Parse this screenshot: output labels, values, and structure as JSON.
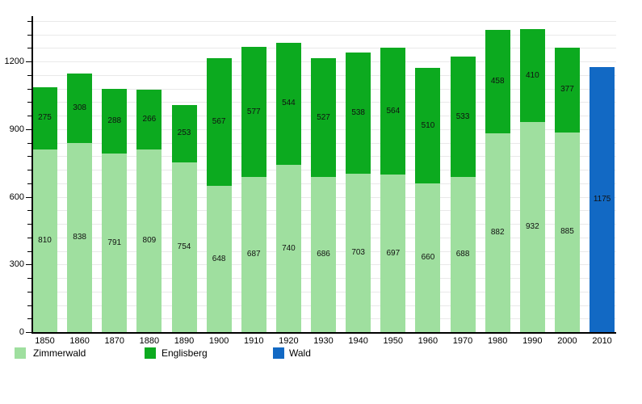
{
  "chart_data": {
    "type": "bar",
    "stacked": true,
    "title": "",
    "xlabel": "",
    "ylabel": "",
    "categories": [
      "1850",
      "1860",
      "1870",
      "1880",
      "1890",
      "1900",
      "1910",
      "1920",
      "1930",
      "1940",
      "1950",
      "1960",
      "1970",
      "1980",
      "1990",
      "2000",
      "2010"
    ],
    "series": [
      {
        "name": "Zimmerwald",
        "color": "#9fdf9f",
        "values": [
          810,
          838,
          791,
          809,
          754,
          648,
          687,
          740,
          686,
          703,
          697,
          660,
          688,
          882,
          932,
          885,
          null
        ]
      },
      {
        "name": "Englisberg",
        "color": "#0caa1f",
        "values": [
          275,
          308,
          288,
          266,
          253,
          567,
          577,
          544,
          527,
          538,
          564,
          510,
          533,
          458,
          410,
          377,
          null
        ]
      },
      {
        "name": "Wald",
        "color": "#1269c4",
        "values": [
          null,
          null,
          null,
          null,
          null,
          null,
          null,
          null,
          null,
          null,
          null,
          null,
          null,
          null,
          null,
          null,
          1175
        ]
      }
    ],
    "ylim": [
      0,
      1380
    ],
    "y_major_ticks": [
      0,
      300,
      600,
      900,
      1200
    ],
    "y_minor_step": 60,
    "grid": true,
    "grid_color": "#e9e9e9",
    "axis_color": "#000000",
    "legend_position": "bottom",
    "legend": [
      "Zimmerwald",
      "Englisberg",
      "Wald"
    ]
  }
}
